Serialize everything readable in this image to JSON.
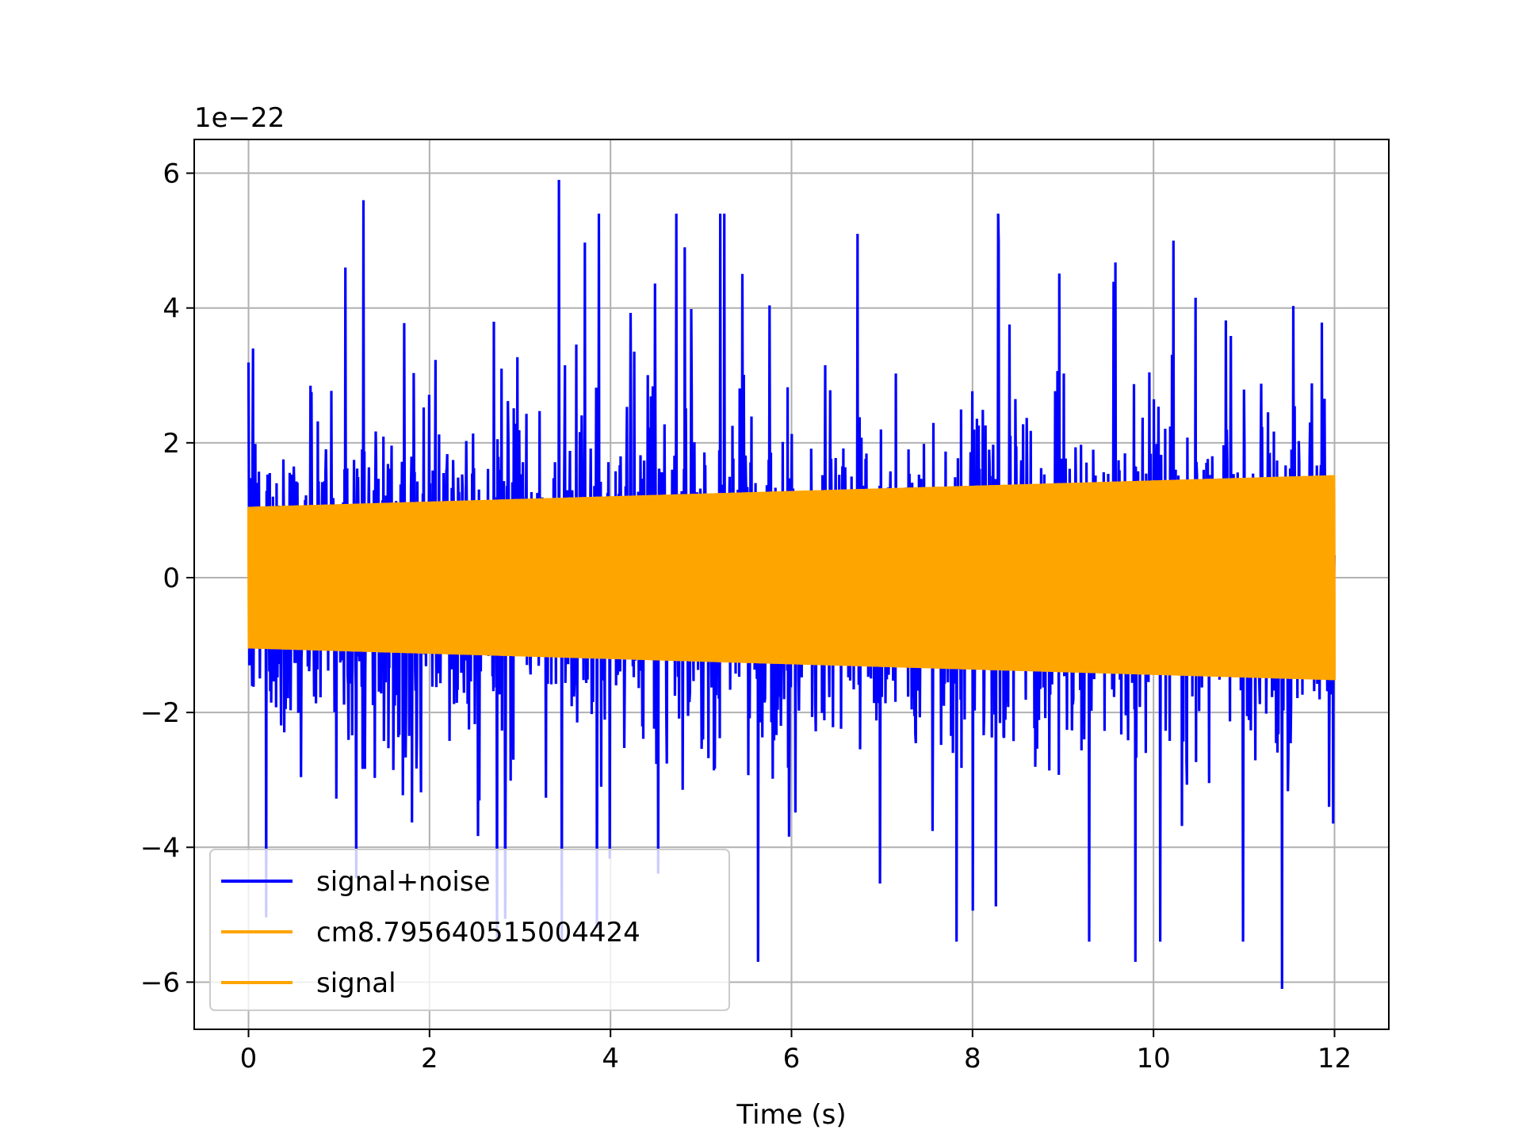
{
  "chart_data": {
    "type": "line",
    "title": "",
    "xlabel": "Time (s)",
    "ylabel": "",
    "y_offset_label": "1e−22",
    "xlim": [
      -0.6,
      12.6
    ],
    "ylim": [
      -6.7,
      6.5
    ],
    "x_ticks": [
      0,
      2,
      4,
      6,
      8,
      10,
      12
    ],
    "x_tick_labels": [
      "0",
      "2",
      "4",
      "6",
      "8",
      "10",
      "12"
    ],
    "y_ticks": [
      -6,
      -4,
      -2,
      0,
      2,
      4,
      6
    ],
    "y_tick_labels": [
      "−6",
      "−4",
      "−2",
      "0",
      "2",
      "4",
      "6"
    ],
    "grid": true,
    "legend_position": "lower-left",
    "series": [
      {
        "name": "signal+noise",
        "color": "#0000ff",
        "description_values": "random noise with peaks",
        "x_range": [
          0,
          12
        ],
        "y_extremes": {
          "max": 5.9,
          "min": -6.1
        },
        "peaks": [
          {
            "x": 1.27,
            "y": 5.6
          },
          {
            "x": 3.43,
            "y": 5.9
          },
          {
            "x": 6.73,
            "y": 5.1
          },
          {
            "x": 11.42,
            "y": -6.1
          },
          {
            "x": 5.63,
            "y": -5.7
          },
          {
            "x": 9.8,
            "y": -5.7
          },
          {
            "x": 10.22,
            "y": 5.0
          },
          {
            "x": 1.07,
            "y": 4.6
          },
          {
            "x": 3.85,
            "y": -5.2
          },
          {
            "x": 4.82,
            "y": 4.9
          },
          {
            "x": 0.05,
            "y": 3.4
          }
        ]
      },
      {
        "name": "cm8.795640515004424",
        "color": "#ffa500",
        "amplitude_start": 1.05,
        "amplitude_end": 1.52,
        "x_range": [
          0,
          12
        ]
      },
      {
        "name": "signal",
        "color": "#ffa500",
        "amplitude_start": 1.05,
        "amplitude_end": 1.52,
        "x_range": [
          0,
          12
        ]
      }
    ]
  }
}
